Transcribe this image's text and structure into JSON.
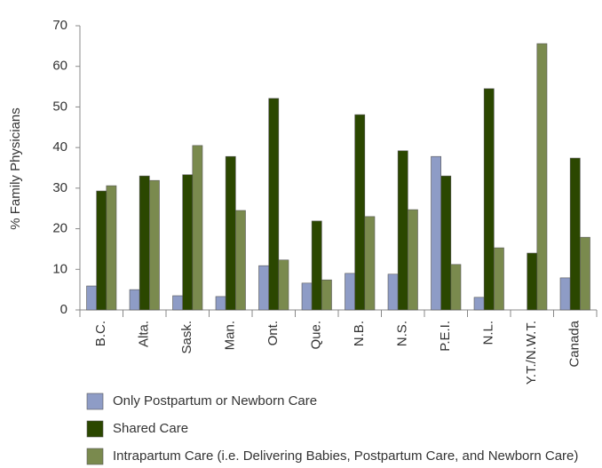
{
  "chart_data": {
    "type": "bar",
    "ylabel": "% Family Physicians",
    "categories": [
      "B.C.",
      "Alta.",
      "Sask.",
      "Man.",
      "Ont.",
      "Que.",
      "N.B.",
      "N.S.",
      "P.E.I.",
      "N.L.",
      "Y.T./N.W.T.",
      "Canada"
    ],
    "series": [
      {
        "name": "Only Postpartum or Newborn Care",
        "color": "#8e9cc6",
        "values": [
          5.9,
          5.0,
          3.5,
          3.3,
          10.9,
          6.6,
          9.0,
          8.8,
          37.8,
          3.1,
          0,
          7.9
        ]
      },
      {
        "name": "Shared Care",
        "color": "#2b4700",
        "values": [
          29.3,
          33.0,
          33.3,
          37.8,
          52.1,
          21.9,
          48.1,
          39.2,
          33.0,
          54.5,
          14.0,
          37.4
        ]
      },
      {
        "name": "Intrapartum Care (i.e. Delivering Babies, Postpartum Care, and Newborn Care)",
        "color": "#7a8a4e",
        "values": [
          30.6,
          31.9,
          40.5,
          24.5,
          12.3,
          7.4,
          23.0,
          24.7,
          11.2,
          15.3,
          65.6,
          17.9
        ]
      }
    ],
    "ylim": [
      0,
      70
    ],
    "yticks": [
      0,
      10,
      20,
      30,
      40,
      50,
      60,
      70
    ],
    "grid": false,
    "legend": "bottom"
  }
}
